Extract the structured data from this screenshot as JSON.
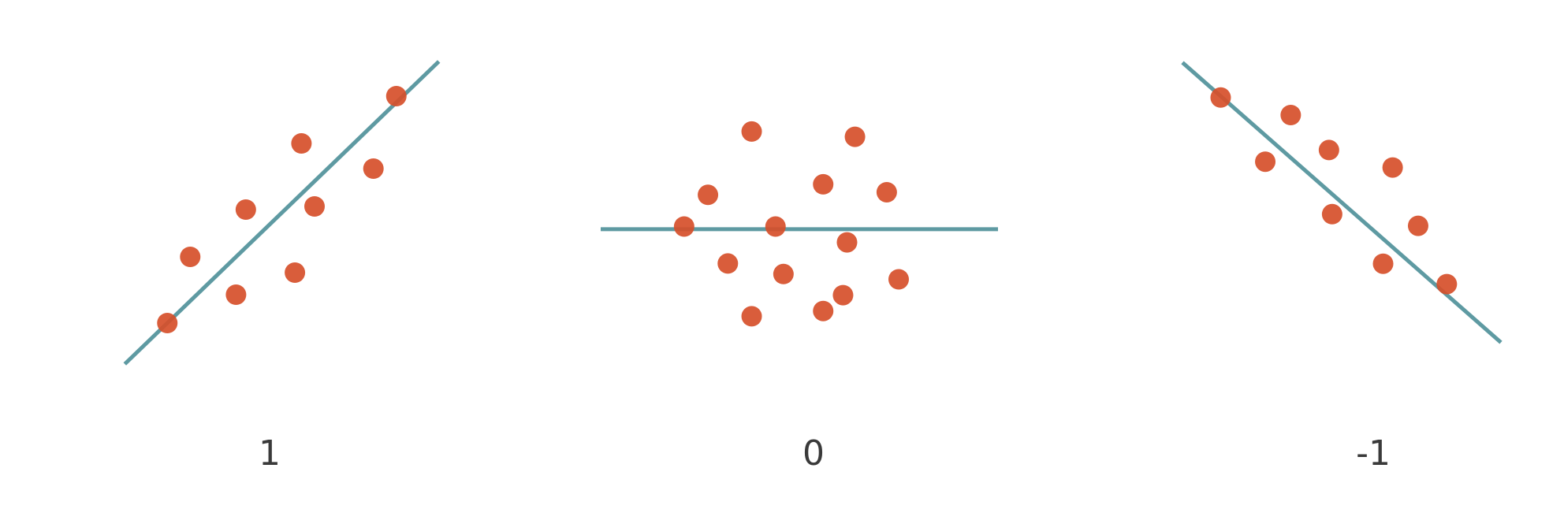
{
  "colors": {
    "point": "#d64f2a",
    "fit_line": "#5e9aa2",
    "label": "#3a3a3a"
  },
  "chart_data": [
    {
      "type": "scatter",
      "label": "1",
      "xlim": [
        0,
        10
      ],
      "ylim": [
        0,
        10
      ],
      "points": [
        {
          "x": 1.5,
          "y": 1.5
        },
        {
          "x": 2.2,
          "y": 3.6
        },
        {
          "x": 3.6,
          "y": 2.4
        },
        {
          "x": 3.9,
          "y": 5.1
        },
        {
          "x": 5.4,
          "y": 3.1
        },
        {
          "x": 5.6,
          "y": 7.2
        },
        {
          "x": 6.0,
          "y": 5.2
        },
        {
          "x": 7.8,
          "y": 6.4
        },
        {
          "x": 8.5,
          "y": 8.7
        }
      ],
      "fit_line": {
        "x1": 0.2,
        "y1": 0.2,
        "x2": 9.8,
        "y2": 9.8
      }
    },
    {
      "type": "scatter",
      "label": "0",
      "xlim": [
        0,
        10
      ],
      "ylim": [
        0,
        10
      ],
      "points": [
        {
          "x": 3.8,
          "y": 8.6
        },
        {
          "x": 6.4,
          "y": 8.4
        },
        {
          "x": 2.7,
          "y": 6.2
        },
        {
          "x": 5.6,
          "y": 6.6
        },
        {
          "x": 7.2,
          "y": 6.3
        },
        {
          "x": 2.1,
          "y": 5.0
        },
        {
          "x": 4.4,
          "y": 5.0
        },
        {
          "x": 6.2,
          "y": 4.4
        },
        {
          "x": 3.2,
          "y": 3.6
        },
        {
          "x": 4.6,
          "y": 3.2
        },
        {
          "x": 7.5,
          "y": 3.0
        },
        {
          "x": 6.1,
          "y": 2.4
        },
        {
          "x": 3.8,
          "y": 1.6
        },
        {
          "x": 5.6,
          "y": 1.8
        }
      ],
      "fit_line": {
        "x1": 0.0,
        "y1": 4.9,
        "x2": 10.0,
        "y2": 4.9
      }
    },
    {
      "type": "scatter",
      "label": "-1",
      "xlim": [
        0,
        10
      ],
      "ylim": [
        0,
        10
      ],
      "points": [
        {
          "x": 1.2,
          "y": 8.6
        },
        {
          "x": 3.4,
          "y": 8.0
        },
        {
          "x": 2.6,
          "y": 6.4
        },
        {
          "x": 4.6,
          "y": 6.8
        },
        {
          "x": 6.6,
          "y": 6.2
        },
        {
          "x": 4.7,
          "y": 4.6
        },
        {
          "x": 7.4,
          "y": 4.2
        },
        {
          "x": 6.3,
          "y": 2.9
        },
        {
          "x": 8.3,
          "y": 2.2
        }
      ],
      "fit_line": {
        "x1": 0.0,
        "y1": 9.8,
        "x2": 10.0,
        "y2": 0.2
      }
    }
  ]
}
